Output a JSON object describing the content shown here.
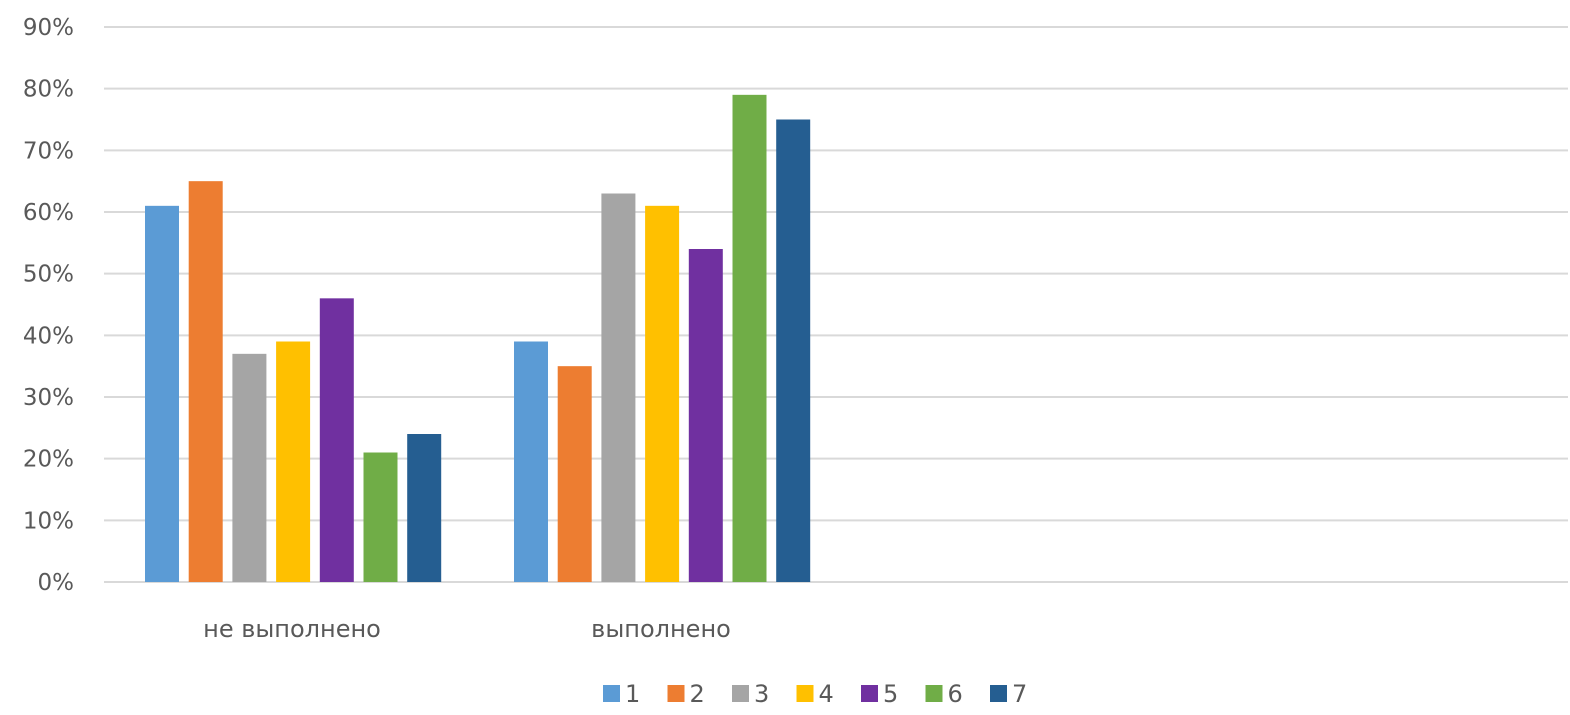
{
  "chart_data": {
    "type": "bar",
    "title": "",
    "xlabel": "",
    "ylabel": "",
    "categories": [
      "не выполнено",
      "выполнено"
    ],
    "series": [
      {
        "name": "1",
        "color": "#5B9BD5",
        "values": [
          61,
          39
        ]
      },
      {
        "name": "2",
        "color": "#ED7D31",
        "values": [
          65,
          35
        ]
      },
      {
        "name": "3",
        "color": "#A5A5A5",
        "values": [
          37,
          63
        ]
      },
      {
        "name": "4",
        "color": "#FFC000",
        "values": [
          39,
          61
        ]
      },
      {
        "name": "5",
        "color": "#7030A0",
        "values": [
          46,
          54
        ]
      },
      {
        "name": "6",
        "color": "#70AD47",
        "values": [
          21,
          79
        ]
      },
      {
        "name": "7",
        "color": "#255E91",
        "values": [
          24,
          75
        ]
      }
    ],
    "ylim": [
      0,
      90
    ],
    "yticks": [
      "0%",
      "10%",
      "20%",
      "30%",
      "40%",
      "50%",
      "60%",
      "70%",
      "80%",
      "90%"
    ],
    "grid": true,
    "legend_position": "bottom"
  }
}
